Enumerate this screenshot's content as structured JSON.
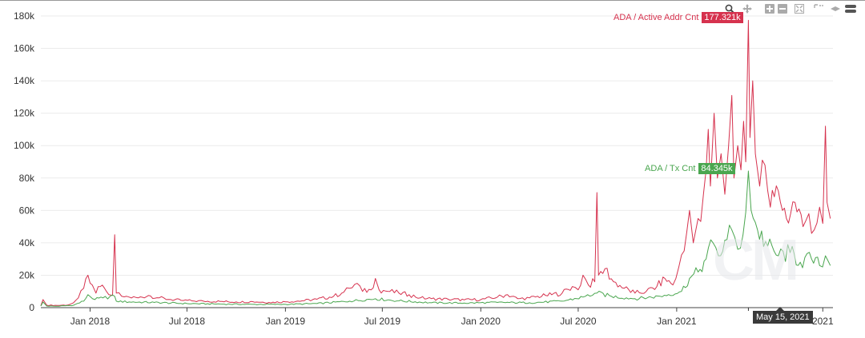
{
  "chart_data": {
    "type": "line",
    "ylim": [
      0,
      180000
    ],
    "y_ticks": [
      {
        "v": 0,
        "label": "0"
      },
      {
        "v": 20000,
        "label": "20k"
      },
      {
        "v": 40000,
        "label": "40k"
      },
      {
        "v": 60000,
        "label": "60k"
      },
      {
        "v": 80000,
        "label": "80k"
      },
      {
        "v": 100000,
        "label": "100k"
      },
      {
        "v": 120000,
        "label": "120k"
      },
      {
        "v": 140000,
        "label": "140k"
      },
      {
        "v": 160000,
        "label": "160k"
      },
      {
        "v": 180000,
        "label": "180k"
      }
    ],
    "x_range": [
      "2017-10-01",
      "2021-10-20"
    ],
    "x_ticks": [
      {
        "date": "2018-01-01",
        "label": "Jan 2018"
      },
      {
        "date": "2018-07-01",
        "label": "Jul 2018"
      },
      {
        "date": "2019-01-01",
        "label": "Jan 2019"
      },
      {
        "date": "2019-07-01",
        "label": "Jul 2019"
      },
      {
        "date": "2020-01-01",
        "label": "Jan 2020"
      },
      {
        "date": "2020-07-01",
        "label": "Jul 2020"
      },
      {
        "date": "2021-01-01",
        "label": "Jan 2021"
      },
      {
        "date": "2021-10-01",
        "label": "2021"
      }
    ],
    "grid": true,
    "series": [
      {
        "name": "ADA / Active Addr Cnt",
        "color": "#d6324e",
        "points": [
          [
            "2017-10-01",
            1200
          ],
          [
            "2017-10-05",
            5000
          ],
          [
            "2017-10-12",
            1500
          ],
          [
            "2017-11-01",
            1400
          ],
          [
            "2017-11-20",
            1600
          ],
          [
            "2017-12-01",
            3000
          ],
          [
            "2017-12-10",
            6000
          ],
          [
            "2017-12-20",
            12000
          ],
          [
            "2017-12-28",
            20000
          ],
          [
            "2018-01-05",
            14000
          ],
          [
            "2018-01-12",
            9000
          ],
          [
            "2018-01-20",
            13000
          ],
          [
            "2018-01-28",
            12000
          ],
          [
            "2018-02-05",
            8000
          ],
          [
            "2018-02-12",
            7500
          ],
          [
            "2018-02-16",
            45000
          ],
          [
            "2018-02-19",
            9000
          ],
          [
            "2018-03-01",
            7000
          ],
          [
            "2018-03-15",
            6500
          ],
          [
            "2018-04-01",
            6000
          ],
          [
            "2018-04-20",
            7500
          ],
          [
            "2018-05-10",
            6000
          ],
          [
            "2018-06-01",
            5000
          ],
          [
            "2018-06-20",
            4500
          ],
          [
            "2018-07-10",
            4200
          ],
          [
            "2018-08-01",
            4000
          ],
          [
            "2018-09-01",
            3800
          ],
          [
            "2018-10-01",
            3500
          ],
          [
            "2018-11-01",
            3700
          ],
          [
            "2018-12-01",
            3200
          ],
          [
            "2019-01-01",
            3600
          ],
          [
            "2019-02-01",
            4200
          ],
          [
            "2019-03-01",
            5200
          ],
          [
            "2019-04-01",
            7000
          ],
          [
            "2019-04-20",
            9500
          ],
          [
            "2019-05-01",
            12000
          ],
          [
            "2019-05-15",
            15000
          ],
          [
            "2019-05-25",
            10000
          ],
          [
            "2019-06-10",
            11000
          ],
          [
            "2019-06-18",
            18000
          ],
          [
            "2019-06-25",
            11000
          ],
          [
            "2019-07-15",
            10000
          ],
          [
            "2019-08-01",
            9000
          ],
          [
            "2019-08-20",
            8000
          ],
          [
            "2019-09-10",
            6000
          ],
          [
            "2019-10-01",
            5500
          ],
          [
            "2019-11-01",
            5200
          ],
          [
            "2019-12-01",
            4800
          ],
          [
            "2020-01-01",
            5000
          ],
          [
            "2020-02-01",
            6500
          ],
          [
            "2020-02-20",
            8000
          ],
          [
            "2020-03-10",
            5500
          ],
          [
            "2020-04-01",
            6000
          ],
          [
            "2020-05-01",
            7500
          ],
          [
            "2020-06-01",
            9000
          ],
          [
            "2020-06-20",
            13000
          ],
          [
            "2020-07-01",
            11000
          ],
          [
            "2020-07-10",
            20000
          ],
          [
            "2020-07-20",
            14000
          ],
          [
            "2020-08-01",
            16000
          ],
          [
            "2020-08-05",
            71000
          ],
          [
            "2020-08-08",
            20000
          ],
          [
            "2020-08-20",
            24000
          ],
          [
            "2020-09-05",
            16000
          ],
          [
            "2020-09-25",
            12000
          ],
          [
            "2020-10-15",
            9000
          ],
          [
            "2020-11-05",
            10000
          ],
          [
            "2020-11-25",
            13000
          ],
          [
            "2020-12-10",
            18000
          ],
          [
            "2020-12-25",
            14000
          ],
          [
            "2021-01-05",
            25000
          ],
          [
            "2021-01-15",
            35000
          ],
          [
            "2021-01-25",
            60000
          ],
          [
            "2021-02-01",
            40000
          ],
          [
            "2021-02-10",
            55000
          ],
          [
            "2021-02-20",
            70000
          ],
          [
            "2021-02-25",
            85000
          ],
          [
            "2021-03-01",
            110000
          ],
          [
            "2021-03-05",
            75000
          ],
          [
            "2021-03-12",
            120000
          ],
          [
            "2021-03-18",
            80000
          ],
          [
            "2021-03-25",
            95000
          ],
          [
            "2021-04-01",
            70000
          ],
          [
            "2021-04-08",
            100000
          ],
          [
            "2021-04-14",
            131000
          ],
          [
            "2021-04-18",
            80000
          ],
          [
            "2021-04-25",
            100000
          ],
          [
            "2021-05-01",
            85000
          ],
          [
            "2021-05-06",
            115000
          ],
          [
            "2021-05-10",
            90000
          ],
          [
            "2021-05-15",
            177321
          ],
          [
            "2021-05-18",
            105000
          ],
          [
            "2021-05-23",
            140000
          ],
          [
            "2021-05-28",
            95000
          ],
          [
            "2021-06-05",
            75000
          ],
          [
            "2021-06-15",
            88000
          ],
          [
            "2021-06-25",
            62000
          ],
          [
            "2021-07-10",
            72000
          ],
          [
            "2021-07-25",
            55000
          ],
          [
            "2021-08-10",
            65000
          ],
          [
            "2021-08-25",
            50000
          ],
          [
            "2021-09-05",
            58000
          ],
          [
            "2021-09-15",
            48000
          ],
          [
            "2021-09-25",
            62000
          ],
          [
            "2021-10-01",
            52000
          ],
          [
            "2021-10-06",
            112000
          ],
          [
            "2021-10-09",
            65000
          ],
          [
            "2021-10-15",
            55000
          ]
        ]
      },
      {
        "name": "ADA / Tx Cnt",
        "color": "#4aa64f",
        "points": [
          [
            "2017-10-01",
            1000
          ],
          [
            "2017-10-05",
            3500
          ],
          [
            "2017-10-12",
            1000
          ],
          [
            "2017-11-01",
            900
          ],
          [
            "2017-12-01",
            1500
          ],
          [
            "2017-12-20",
            4000
          ],
          [
            "2017-12-28",
            8000
          ],
          [
            "2018-01-10",
            5000
          ],
          [
            "2018-01-25",
            6000
          ],
          [
            "2018-02-16",
            7000
          ],
          [
            "2018-02-19",
            4000
          ],
          [
            "2018-03-15",
            3500
          ],
          [
            "2018-05-01",
            3200
          ],
          [
            "2018-07-01",
            2500
          ],
          [
            "2018-09-01",
            2200
          ],
          [
            "2018-11-01",
            2000
          ],
          [
            "2019-01-01",
            2000
          ],
          [
            "2019-03-01",
            2500
          ],
          [
            "2019-05-01",
            4000
          ],
          [
            "2019-06-18",
            5500
          ],
          [
            "2019-08-01",
            4200
          ],
          [
            "2019-10-01",
            3000
          ],
          [
            "2019-12-01",
            2800
          ],
          [
            "2020-02-01",
            3200
          ],
          [
            "2020-04-01",
            3000
          ],
          [
            "2020-06-01",
            4000
          ],
          [
            "2020-07-10",
            6500
          ],
          [
            "2020-08-05",
            9000
          ],
          [
            "2020-09-01",
            7000
          ],
          [
            "2020-10-15",
            5500
          ],
          [
            "2020-12-01",
            7000
          ],
          [
            "2021-01-10",
            10000
          ],
          [
            "2021-01-25",
            18000
          ],
          [
            "2021-02-10",
            22000
          ],
          [
            "2021-02-25",
            30000
          ],
          [
            "2021-03-10",
            40000
          ],
          [
            "2021-03-20",
            32000
          ],
          [
            "2021-04-05",
            42000
          ],
          [
            "2021-04-14",
            48000
          ],
          [
            "2021-04-25",
            36000
          ],
          [
            "2021-05-05",
            45000
          ],
          [
            "2021-05-15",
            84345
          ],
          [
            "2021-05-20",
            60000
          ],
          [
            "2021-06-01",
            48000
          ],
          [
            "2021-06-20",
            38000
          ],
          [
            "2021-07-10",
            32000
          ],
          [
            "2021-08-01",
            34000
          ],
          [
            "2021-08-20",
            28000
          ],
          [
            "2021-09-10",
            30000
          ],
          [
            "2021-09-25",
            26000
          ],
          [
            "2021-10-06",
            32000
          ],
          [
            "2021-10-15",
            26000
          ]
        ]
      }
    ],
    "series_tags": [
      {
        "series": 0,
        "value_label": "177.321k"
      },
      {
        "series": 1,
        "value_label": "84.345k"
      }
    ],
    "hover_date_label": "May 15, 2021"
  },
  "toolbar": {
    "icons": [
      "zoom-icon",
      "pan-icon",
      "zoom-in-icon",
      "zoom-out-icon",
      "autoscale-icon",
      "reset-axes-icon",
      "toggle-spike-icon",
      "legend-toggle-icon"
    ]
  },
  "watermark": "CM"
}
